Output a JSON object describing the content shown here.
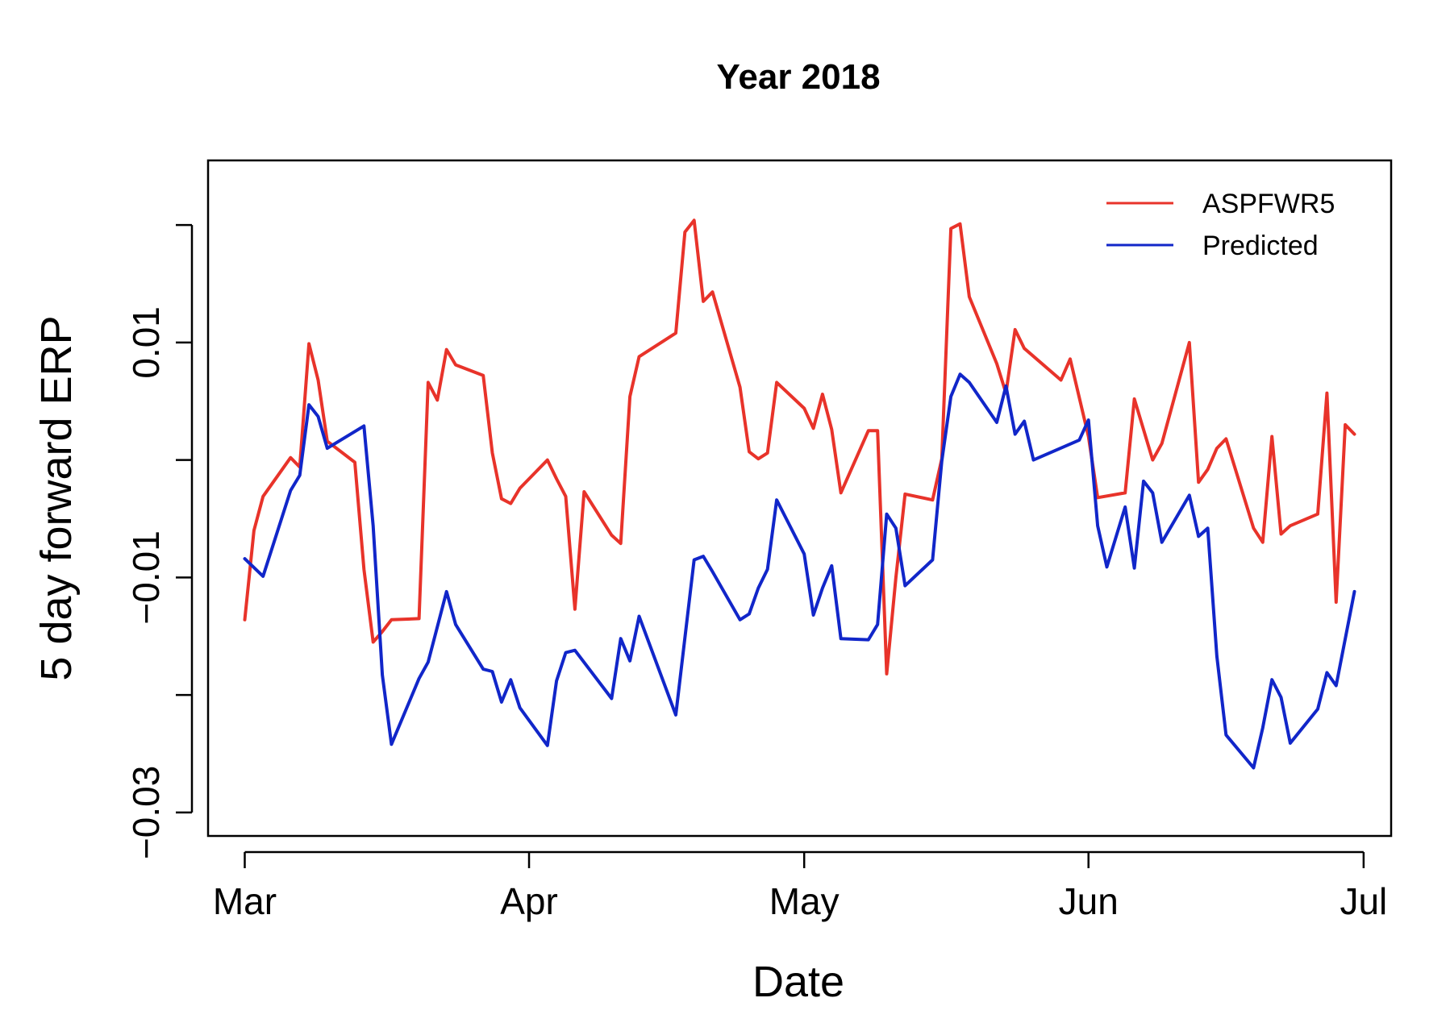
{
  "chart_data": {
    "type": "line",
    "title": "Year 2018",
    "xlabel": "Date",
    "ylabel": "5 day forward ERP",
    "x_ticks": [
      {
        "date": "2018-03-01",
        "label": "Mar"
      },
      {
        "date": "2018-04-01",
        "label": "Apr"
      },
      {
        "date": "2018-05-01",
        "label": "May"
      },
      {
        "date": "2018-06-01",
        "label": "Jun"
      },
      {
        "date": "2018-07-01",
        "label": "Jul"
      }
    ],
    "y_ticks": [
      {
        "value": -0.03,
        "label": "−0.03"
      },
      {
        "value": -0.02,
        "label": ""
      },
      {
        "value": -0.01,
        "label": "−0.01"
      },
      {
        "value": 0.0,
        "label": ""
      },
      {
        "value": 0.01,
        "label": "0.01"
      },
      {
        "value": 0.02,
        "label": ""
      }
    ],
    "xlim": [
      "2018-02-25",
      "2018-07-04"
    ],
    "ylim": [
      -0.032,
      0.0255
    ],
    "grid": false,
    "legend_position": "top-right",
    "series": [
      {
        "name": "ASPFWR5",
        "color": "#e8332a",
        "points": [
          [
            "2018-03-01",
            -0.0136
          ],
          [
            "2018-03-02",
            -0.006
          ],
          [
            "2018-03-03",
            -0.0031
          ],
          [
            "2018-03-06",
            0.0002
          ],
          [
            "2018-03-07",
            -0.0006
          ],
          [
            "2018-03-08",
            0.0099
          ],
          [
            "2018-03-09",
            0.0068
          ],
          [
            "2018-03-10",
            0.0016
          ],
          [
            "2018-03-13",
            -0.0002
          ],
          [
            "2018-03-14",
            -0.0093
          ],
          [
            "2018-03-15",
            -0.0155
          ],
          [
            "2018-03-16",
            -0.0146
          ],
          [
            "2018-03-17",
            -0.0136
          ],
          [
            "2018-03-20",
            -0.0135
          ],
          [
            "2018-03-21",
            0.0066
          ],
          [
            "2018-03-22",
            0.0051
          ],
          [
            "2018-03-23",
            0.0094
          ],
          [
            "2018-03-24",
            0.0081
          ],
          [
            "2018-03-27",
            0.0072
          ],
          [
            "2018-03-28",
            0.0006
          ],
          [
            "2018-03-29",
            -0.0033
          ],
          [
            "2018-03-30",
            -0.0037
          ],
          [
            "2018-03-31",
            -0.0024
          ],
          [
            "2018-04-03",
            0.0
          ],
          [
            "2018-04-04",
            -0.0016
          ],
          [
            "2018-04-05",
            -0.0031
          ],
          [
            "2018-04-06",
            -0.0127
          ],
          [
            "2018-04-07",
            -0.0027
          ],
          [
            "2018-04-10",
            -0.0064
          ],
          [
            "2018-04-11",
            -0.0071
          ],
          [
            "2018-04-12",
            0.0054
          ],
          [
            "2018-04-13",
            0.0088
          ],
          [
            "2018-04-17",
            0.0108
          ],
          [
            "2018-04-18",
            0.0194
          ],
          [
            "2018-04-19",
            0.0204
          ],
          [
            "2018-04-20",
            0.0135
          ],
          [
            "2018-04-21",
            0.0143
          ],
          [
            "2018-04-24",
            0.0062
          ],
          [
            "2018-04-25",
            0.0007
          ],
          [
            "2018-04-26",
            0.0001
          ],
          [
            "2018-04-27",
            0.0006
          ],
          [
            "2018-04-28",
            0.0066
          ],
          [
            "2018-05-01",
            0.0044
          ],
          [
            "2018-05-02",
            0.0027
          ],
          [
            "2018-05-03",
            0.0056
          ],
          [
            "2018-05-04",
            0.0026
          ],
          [
            "2018-05-05",
            -0.0028
          ],
          [
            "2018-05-08",
            0.0025
          ],
          [
            "2018-05-09",
            0.0025
          ],
          [
            "2018-05-10",
            -0.0182
          ],
          [
            "2018-05-11",
            -0.01
          ],
          [
            "2018-05-12",
            -0.0029
          ],
          [
            "2018-05-15",
            -0.0034
          ],
          [
            "2018-05-16",
            0.0001
          ],
          [
            "2018-05-17",
            0.0197
          ],
          [
            "2018-05-18",
            0.0201
          ],
          [
            "2018-05-19",
            0.0139
          ],
          [
            "2018-05-22",
            0.0082
          ],
          [
            "2018-05-23",
            0.0057
          ],
          [
            "2018-05-24",
            0.0111
          ],
          [
            "2018-05-25",
            0.0095
          ],
          [
            "2018-05-29",
            0.0068
          ],
          [
            "2018-05-30",
            0.0086
          ],
          [
            "2018-06-01",
            0.002
          ],
          [
            "2018-06-02",
            -0.0032
          ],
          [
            "2018-06-05",
            -0.0028
          ],
          [
            "2018-06-06",
            0.0052
          ],
          [
            "2018-06-08",
            0.0
          ],
          [
            "2018-06-09",
            0.0014
          ],
          [
            "2018-06-12",
            0.01
          ],
          [
            "2018-06-13",
            -0.0019
          ],
          [
            "2018-06-14",
            -0.0008
          ],
          [
            "2018-06-15",
            0.001
          ],
          [
            "2018-06-16",
            0.0018
          ],
          [
            "2018-06-19",
            -0.0058
          ],
          [
            "2018-06-20",
            -0.007
          ],
          [
            "2018-06-21",
            0.002
          ],
          [
            "2018-06-22",
            -0.0063
          ],
          [
            "2018-06-23",
            -0.0056
          ],
          [
            "2018-06-26",
            -0.0046
          ],
          [
            "2018-06-27",
            0.0057
          ],
          [
            "2018-06-28",
            -0.0121
          ],
          [
            "2018-06-29",
            0.003
          ],
          [
            "2018-06-30",
            0.0022
          ]
        ]
      },
      {
        "name": "Predicted",
        "color": "#1126c9",
        "points": [
          [
            "2018-03-01",
            -0.0084
          ],
          [
            "2018-03-03",
            -0.0099
          ],
          [
            "2018-03-06",
            -0.0026
          ],
          [
            "2018-03-07",
            -0.0013
          ],
          [
            "2018-03-08",
            0.0047
          ],
          [
            "2018-03-09",
            0.0037
          ],
          [
            "2018-03-10",
            0.001
          ],
          [
            "2018-03-14",
            0.0029
          ],
          [
            "2018-03-15",
            -0.0056
          ],
          [
            "2018-03-16",
            -0.0183
          ],
          [
            "2018-03-17",
            -0.0242
          ],
          [
            "2018-03-20",
            -0.0186
          ],
          [
            "2018-03-21",
            -0.0172
          ],
          [
            "2018-03-23",
            -0.0112
          ],
          [
            "2018-03-24",
            -0.014
          ],
          [
            "2018-03-27",
            -0.0178
          ],
          [
            "2018-03-28",
            -0.018
          ],
          [
            "2018-03-29",
            -0.0206
          ],
          [
            "2018-03-30",
            -0.0187
          ],
          [
            "2018-03-31",
            -0.0211
          ],
          [
            "2018-04-03",
            -0.0243
          ],
          [
            "2018-04-04",
            -0.0188
          ],
          [
            "2018-04-05",
            -0.0164
          ],
          [
            "2018-04-06",
            -0.0162
          ],
          [
            "2018-04-10",
            -0.0203
          ],
          [
            "2018-04-11",
            -0.0152
          ],
          [
            "2018-04-12",
            -0.0171
          ],
          [
            "2018-04-13",
            -0.0133
          ],
          [
            "2018-04-17",
            -0.0217
          ],
          [
            "2018-04-19",
            -0.0085
          ],
          [
            "2018-04-20",
            -0.0082
          ],
          [
            "2018-04-21",
            -0.0095
          ],
          [
            "2018-04-24",
            -0.0136
          ],
          [
            "2018-04-25",
            -0.0131
          ],
          [
            "2018-04-26",
            -0.0109
          ],
          [
            "2018-04-27",
            -0.0093
          ],
          [
            "2018-04-28",
            -0.0034
          ],
          [
            "2018-05-01",
            -0.008
          ],
          [
            "2018-05-02",
            -0.0132
          ],
          [
            "2018-05-03",
            -0.0109
          ],
          [
            "2018-05-04",
            -0.009
          ],
          [
            "2018-05-05",
            -0.0152
          ],
          [
            "2018-05-08",
            -0.0153
          ],
          [
            "2018-05-09",
            -0.014
          ],
          [
            "2018-05-10",
            -0.0046
          ],
          [
            "2018-05-11",
            -0.0058
          ],
          [
            "2018-05-12",
            -0.0107
          ],
          [
            "2018-05-15",
            -0.0085
          ],
          [
            "2018-05-16",
            -0.0001
          ],
          [
            "2018-05-17",
            0.0054
          ],
          [
            "2018-05-18",
            0.0073
          ],
          [
            "2018-05-19",
            0.0066
          ],
          [
            "2018-05-22",
            0.0032
          ],
          [
            "2018-05-23",
            0.0063
          ],
          [
            "2018-05-24",
            0.0022
          ],
          [
            "2018-05-25",
            0.0033
          ],
          [
            "2018-05-26",
            0.0
          ],
          [
            "2018-05-31",
            0.0017
          ],
          [
            "2018-06-01",
            0.0034
          ],
          [
            "2018-06-02",
            -0.0056
          ],
          [
            "2018-06-03",
            -0.0091
          ],
          [
            "2018-06-05",
            -0.004
          ],
          [
            "2018-06-06",
            -0.0092
          ],
          [
            "2018-06-07",
            -0.0018
          ],
          [
            "2018-06-08",
            -0.0028
          ],
          [
            "2018-06-09",
            -0.007
          ],
          [
            "2018-06-12",
            -0.003
          ],
          [
            "2018-06-13",
            -0.0065
          ],
          [
            "2018-06-14",
            -0.0058
          ],
          [
            "2018-06-15",
            -0.0167
          ],
          [
            "2018-06-16",
            -0.0234
          ],
          [
            "2018-06-19",
            -0.0262
          ],
          [
            "2018-06-20",
            -0.0228
          ],
          [
            "2018-06-21",
            -0.0187
          ],
          [
            "2018-06-22",
            -0.0202
          ],
          [
            "2018-06-23",
            -0.0241
          ],
          [
            "2018-06-26",
            -0.0212
          ],
          [
            "2018-06-27",
            -0.0181
          ],
          [
            "2018-06-28",
            -0.0192
          ],
          [
            "2018-06-30",
            -0.0112
          ]
        ]
      }
    ]
  }
}
